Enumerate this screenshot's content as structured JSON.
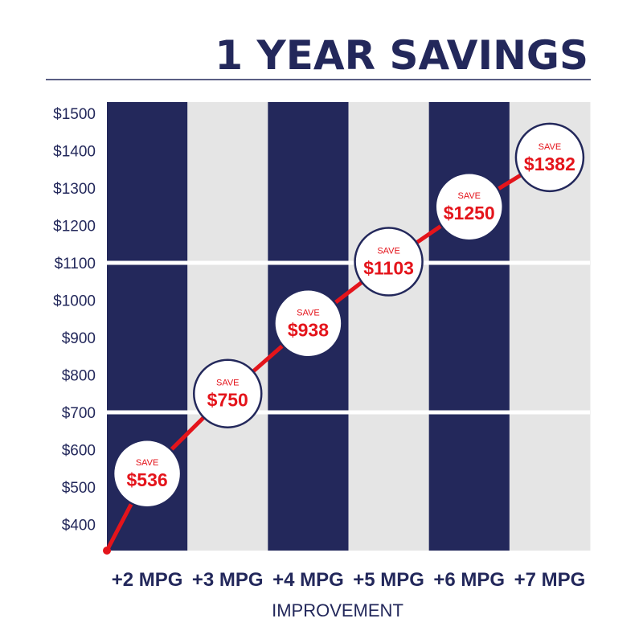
{
  "chart_data": {
    "type": "line",
    "title": "1 YEAR SAVINGS",
    "xlabel": "IMPROVEMENT",
    "ylabel": "",
    "categories": [
      "+2 MPG",
      "+3 MPG",
      "+4 MPG",
      "+5 MPG",
      "+6 MPG",
      "+7 MPG"
    ],
    "values": [
      536,
      750,
      938,
      1103,
      1250,
      1382
    ],
    "labels": [
      "$536",
      "$750",
      "$938",
      "$1103",
      "$1250",
      "$1382"
    ],
    "point_caption": "SAVE",
    "yticks": [
      400,
      500,
      600,
      700,
      800,
      900,
      1000,
      1100,
      1200,
      1300,
      1400,
      1500
    ],
    "ytick_labels": [
      "$400",
      "$500",
      "$600",
      "$700",
      "$800",
      "$900",
      "$1000",
      "$1100",
      "$1200",
      "$1300",
      "$1400",
      "$1500"
    ],
    "ylim": [
      330,
      1530
    ],
    "line_start_value": 330,
    "grid_lines_at": [
      700,
      1100
    ],
    "legend": "none",
    "colors": {
      "title": "#23285b",
      "dark_column": "#23285b",
      "light_column": "#e5e5e5",
      "line": "#e4141b",
      "marker_border": "#23285b",
      "marker_fill": "#ffffff",
      "value_text": "#e4141b",
      "axis_text": "#23285b"
    }
  }
}
